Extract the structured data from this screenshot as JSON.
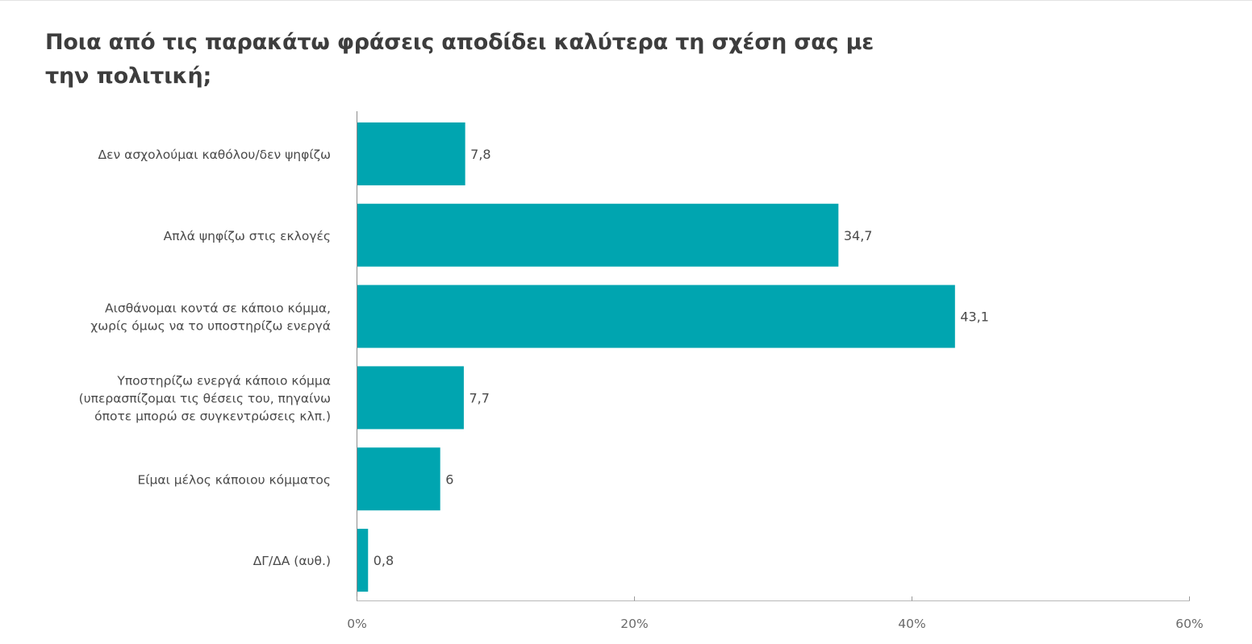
{
  "title": "Ποια από τις παρακάτω φράσεις αποδίδει καλύτερα τη σχέση σας με την πολιτική;",
  "colors": {
    "bar": "#00a5b0",
    "axis": "#8c8c8c",
    "text": "#4a4a4a"
  },
  "chart_data": {
    "type": "bar",
    "orientation": "horizontal",
    "categories": [
      [
        "Δεν ασχολούμαι καθόλου/δεν ψηφίζω"
      ],
      [
        "Απλά ψηφίζω στις εκλογές"
      ],
      [
        "Αισθάνομαι κοντά σε κάποιο κόμμα,",
        "χωρίς όμως να το υποστηρίζω ενεργά"
      ],
      [
        "Υποστηρίζω ενεργά κάποιο κόμμα",
        "(υπερασπίζομαι τις θέσεις του, πηγαίνω",
        "όποτε μπορώ σε συγκεντρώσεις κλπ.)"
      ],
      [
        "Είμαι μέλος κάποιου κόμματος"
      ],
      [
        "ΔΓ/ΔΑ (αυθ.)"
      ]
    ],
    "values": [
      7.8,
      34.7,
      43.1,
      7.7,
      6,
      0.8
    ],
    "value_labels": [
      "7,8",
      "34,7",
      "43,1",
      "7,7",
      "6",
      "0,8"
    ],
    "xlim": [
      0,
      60
    ],
    "xticks": [
      0,
      20,
      40,
      60
    ],
    "xtick_labels": [
      "0%",
      "20%",
      "40%",
      "60%"
    ],
    "grid": false,
    "legend": "none"
  }
}
